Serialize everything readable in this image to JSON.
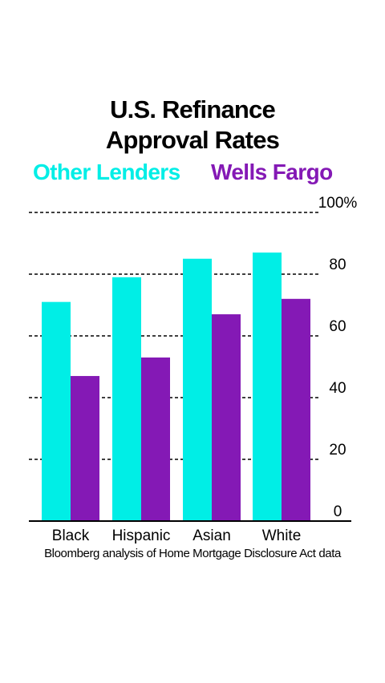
{
  "title_lines": [
    "U.S. Refinance",
    "Approval Rates"
  ],
  "source": "Bloomberg analysis of Home Mortgage Disclosure Act data",
  "colors": {
    "other_lenders": "#00EEE6",
    "wells_fargo": "#8419B5"
  },
  "chart_data": {
    "type": "bar",
    "title": "U.S. Refinance Approval Rates",
    "categories": [
      "Black",
      "Hispanic",
      "Asian",
      "White"
    ],
    "series": [
      {
        "name": "Other Lenders",
        "color": "#00EEE6",
        "values": [
          71,
          79,
          85,
          87
        ]
      },
      {
        "name": "Wells Fargo",
        "color": "#8419B5",
        "values": [
          47,
          53,
          67,
          72
        ]
      }
    ],
    "ylim": [
      0,
      100
    ],
    "y_ticks": [
      0,
      20,
      40,
      60,
      80,
      100
    ],
    "y_tick_labels": [
      "0",
      "20",
      "40",
      "60",
      "80",
      "100%"
    ],
    "grid": "dashed horizontal",
    "legend_position": "top",
    "xlabel": "",
    "ylabel": ""
  }
}
